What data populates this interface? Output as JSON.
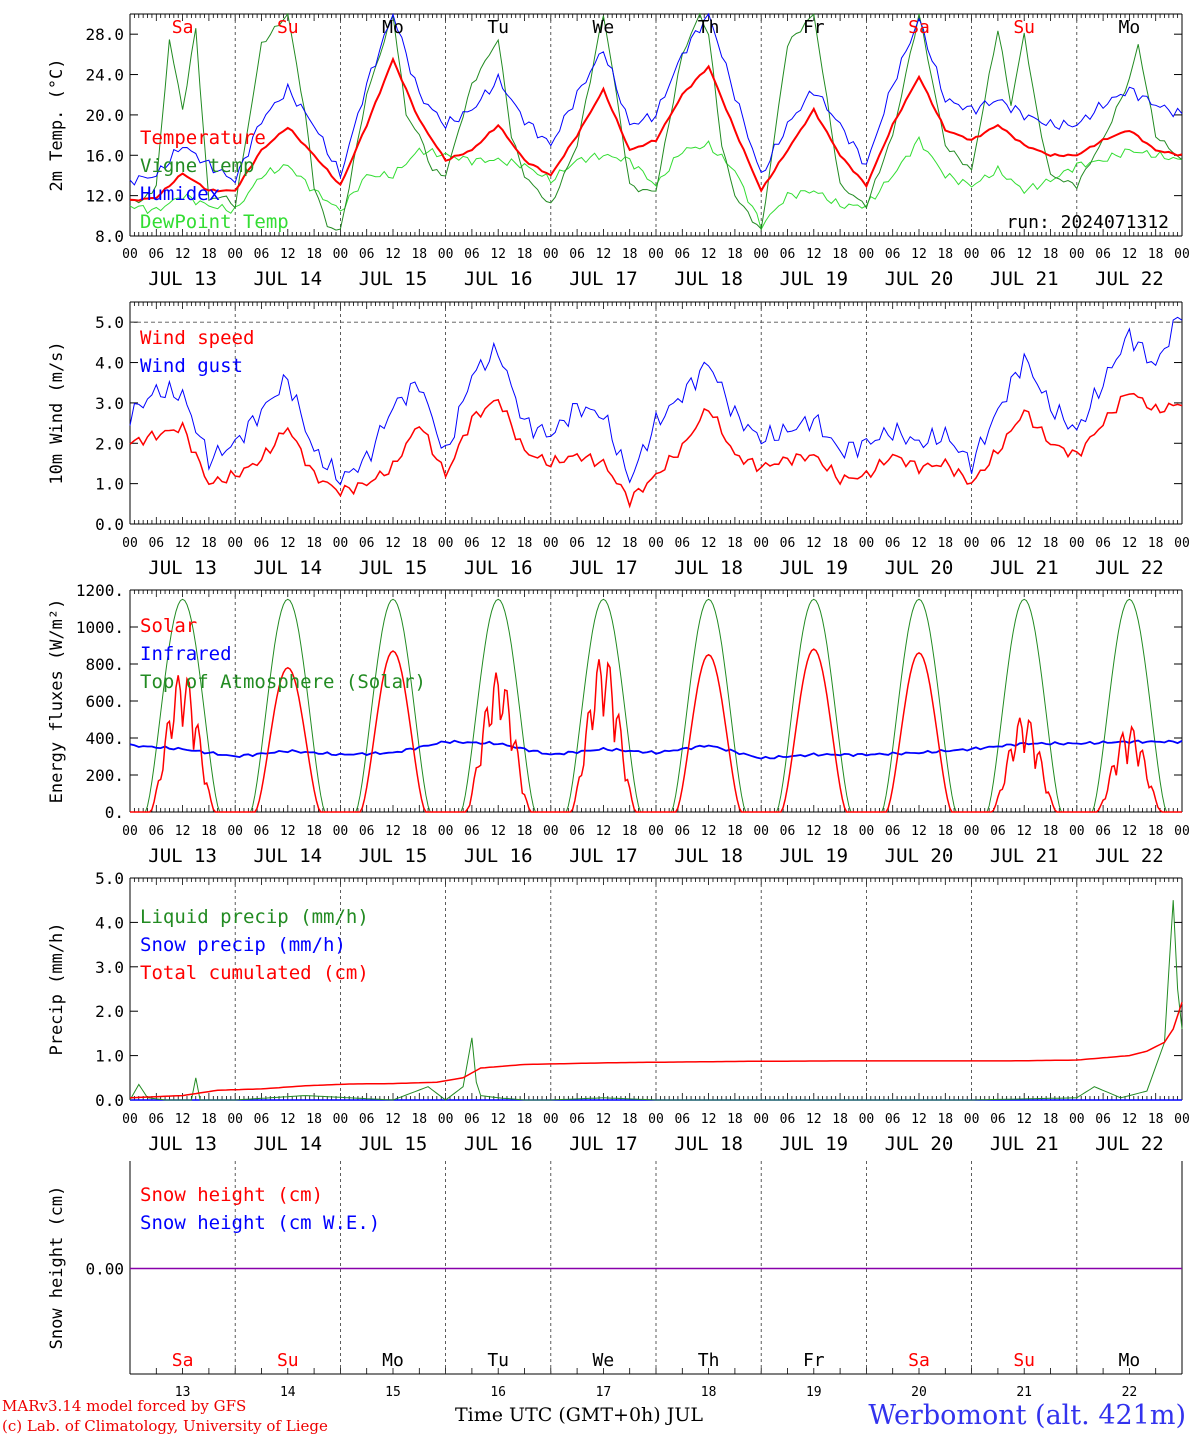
{
  "meteogram": {
    "run_label": "run: 2024071312",
    "hour_ticks": [
      "00",
      "06",
      "12",
      "18"
    ],
    "day_labels": [
      "JUL 13",
      "JUL 14",
      "JUL 15",
      "JUL 16",
      "JUL 17",
      "JUL 18",
      "JUL 19",
      "JUL 20",
      "JUL 21",
      "JUL 22"
    ],
    "weekdays": [
      {
        "label": "Sa",
        "weekend": true
      },
      {
        "label": "Su",
        "weekend": true
      },
      {
        "label": "Mo",
        "weekend": false
      },
      {
        "label": "Tu",
        "weekend": false
      },
      {
        "label": "We",
        "weekend": false
      },
      {
        "label": "Th",
        "weekend": false
      },
      {
        "label": "Fr",
        "weekend": false
      },
      {
        "label": "Sa",
        "weekend": true
      },
      {
        "label": "Su",
        "weekend": true
      },
      {
        "label": "Mo",
        "weekend": false
      }
    ],
    "day_numbers": [
      "13",
      "14",
      "15",
      "16",
      "17",
      "18",
      "19",
      "20",
      "21",
      "22"
    ],
    "x_axis_title": "Time UTC (GMT+0h) JUL",
    "credit_line1": "MARv3.14 model forced by GFS",
    "credit_line2": "(c) Lab. of Climatology, University of Liege",
    "station": "Werbomont (alt. 421m)",
    "colors": {
      "red": "#ff0000",
      "green": "#228b22",
      "blue": "#0000ff",
      "lightgreen": "#33dd33",
      "purple": "#8800aa",
      "station": "#3333ee",
      "credit": "#ee0000"
    }
  },
  "chart_data": [
    {
      "type": "line",
      "ylabel": "2m Temp. (°C)",
      "ylim": [
        8,
        30
      ],
      "yticks": [
        "8.0",
        "12.0",
        "16.0",
        "20.0",
        "24.0",
        "28.0"
      ],
      "x_unit": "hours since JUL 13 00 UTC",
      "series": [
        {
          "name": "Temperature",
          "color": "red",
          "x": [
            0,
            6,
            12,
            18,
            24,
            30,
            36,
            42,
            48,
            54,
            60,
            66,
            72,
            78,
            84,
            90,
            96,
            102,
            108,
            114,
            120,
            126,
            132,
            138,
            144,
            150,
            156,
            162,
            168,
            174,
            180,
            186,
            192,
            198,
            204,
            210,
            216,
            222,
            228,
            234,
            240
          ],
          "values": [
            11.5,
            11.8,
            14.2,
            12.5,
            12.5,
            16.5,
            18.8,
            16.0,
            13.0,
            19.0,
            25.5,
            19.5,
            15.5,
            16.5,
            19.0,
            15.5,
            14.0,
            18.0,
            22.5,
            16.5,
            17.5,
            22.0,
            24.8,
            18.5,
            12.5,
            16.5,
            20.5,
            16.0,
            13.0,
            19.0,
            23.8,
            18.5,
            17.5,
            19.0,
            17.0,
            16.0,
            16.0,
            17.5,
            18.5,
            16.5,
            16.0
          ]
        },
        {
          "name": "Vigne temp",
          "color": "green",
          "x": [
            0,
            3,
            6,
            9,
            12,
            15,
            18,
            21,
            24,
            30,
            36,
            40,
            42,
            45,
            48,
            54,
            60,
            63,
            66,
            69,
            72,
            78,
            84,
            87,
            90,
            96,
            102,
            108,
            111,
            114,
            117,
            120,
            126,
            130,
            132,
            135,
            138,
            144,
            150,
            156,
            162,
            168,
            174,
            180,
            186,
            192,
            198,
            201,
            204,
            207,
            210,
            216,
            222,
            228,
            230,
            234,
            240
          ],
          "values": [
            11.5,
            11.5,
            13.0,
            27.5,
            20.5,
            28.5,
            11.5,
            12.0,
            11.0,
            27.0,
            30.0,
            20.0,
            13.0,
            9.0,
            8.5,
            22.0,
            30.0,
            20.0,
            18.0,
            14.5,
            14.0,
            23.0,
            27.5,
            18.0,
            14.0,
            11.0,
            17.0,
            30.0,
            22.0,
            13.0,
            12.5,
            12.5,
            26.0,
            30.0,
            28.0,
            17.0,
            12.0,
            8.5,
            27.0,
            30.0,
            13.0,
            11.0,
            18.0,
            30.0,
            17.0,
            14.5,
            28.5,
            21.0,
            28.0,
            20.0,
            14.0,
            13.0,
            17.5,
            23.5,
            27.0,
            18.0,
            15.5
          ]
        },
        {
          "name": "Humidex",
          "color": "blue",
          "x": [
            0,
            6,
            12,
            18,
            24,
            30,
            36,
            42,
            48,
            54,
            60,
            66,
            72,
            78,
            84,
            90,
            96,
            102,
            108,
            114,
            120,
            126,
            132,
            138,
            144,
            150,
            156,
            162,
            168,
            174,
            180,
            186,
            192,
            198,
            204,
            210,
            216,
            222,
            228,
            234,
            240
          ],
          "values": [
            13.5,
            14.0,
            17.0,
            15.0,
            13.5,
            19.5,
            22.5,
            19.0,
            14.0,
            23.0,
            30.0,
            22.0,
            19.0,
            20.5,
            23.5,
            19.5,
            17.0,
            22.0,
            26.5,
            19.0,
            20.0,
            26.0,
            30.0,
            22.0,
            14.0,
            19.0,
            22.5,
            19.0,
            15.0,
            23.0,
            29.5,
            21.5,
            20.5,
            21.5,
            20.0,
            19.0,
            19.0,
            21.0,
            22.5,
            21.0,
            20.0
          ]
        },
        {
          "name": "DewPoint Temp",
          "color": "lightgreen",
          "x": [
            0,
            6,
            12,
            18,
            24,
            30,
            36,
            42,
            48,
            54,
            60,
            66,
            72,
            78,
            84,
            90,
            96,
            102,
            108,
            114,
            120,
            126,
            132,
            138,
            144,
            150,
            156,
            162,
            168,
            174,
            180,
            186,
            192,
            198,
            204,
            210,
            216,
            222,
            228,
            234,
            240
          ],
          "values": [
            11.0,
            10.5,
            12.0,
            11.0,
            10.5,
            14.0,
            15.0,
            12.5,
            10.5,
            14.0,
            14.0,
            16.5,
            16.0,
            15.5,
            15.5,
            15.0,
            13.5,
            15.5,
            16.0,
            15.5,
            13.0,
            16.5,
            17.0,
            14.5,
            9.0,
            12.0,
            12.5,
            11.0,
            11.0,
            14.0,
            17.5,
            14.0,
            13.0,
            14.5,
            12.5,
            13.5,
            15.0,
            15.5,
            16.5,
            16.0,
            15.5
          ]
        }
      ]
    },
    {
      "type": "line",
      "ylabel": "10m Wind (m/s)",
      "ylim": [
        0,
        5.5
      ],
      "yticks": [
        "0.0",
        "1.0",
        "2.0",
        "3.0",
        "4.0",
        "5.0"
      ],
      "reference_line": 5.0,
      "x_unit": "hours since JUL 13 00 UTC",
      "series": [
        {
          "name": "Wind speed",
          "color": "red",
          "x": [
            0,
            6,
            12,
            18,
            24,
            30,
            36,
            42,
            48,
            54,
            60,
            66,
            72,
            78,
            84,
            90,
            96,
            102,
            108,
            114,
            120,
            126,
            132,
            138,
            144,
            150,
            156,
            162,
            168,
            174,
            180,
            186,
            192,
            198,
            204,
            210,
            216,
            222,
            228,
            234,
            240
          ],
          "values": [
            2.0,
            2.2,
            2.4,
            1.0,
            1.2,
            1.6,
            2.4,
            1.2,
            0.8,
            1.0,
            1.4,
            2.5,
            1.2,
            2.6,
            3.1,
            1.8,
            1.5,
            1.7,
            1.5,
            0.6,
            1.2,
            1.9,
            2.9,
            1.7,
            1.4,
            1.6,
            1.7,
            1.1,
            1.2,
            1.7,
            1.4,
            1.5,
            1.0,
            1.8,
            2.8,
            2.0,
            1.7,
            2.5,
            3.3,
            2.8,
            3.0
          ]
        },
        {
          "name": "Wind gust",
          "color": "blue",
          "x": [
            0,
            6,
            12,
            18,
            24,
            30,
            36,
            42,
            48,
            54,
            60,
            66,
            72,
            78,
            84,
            90,
            96,
            102,
            108,
            114,
            120,
            126,
            132,
            138,
            144,
            150,
            156,
            162,
            168,
            174,
            180,
            186,
            192,
            198,
            204,
            210,
            216,
            222,
            228,
            234,
            240
          ],
          "values": [
            2.7,
            3.3,
            3.2,
            1.6,
            2.0,
            2.8,
            3.6,
            1.8,
            1.1,
            1.6,
            2.9,
            3.5,
            1.7,
            3.7,
            4.3,
            2.5,
            2.2,
            2.9,
            2.7,
            1.1,
            2.5,
            3.2,
            4.0,
            2.7,
            2.1,
            2.3,
            2.6,
            1.8,
            2.0,
            2.3,
            2.0,
            2.2,
            1.5,
            2.8,
            4.1,
            2.9,
            2.3,
            3.5,
            4.7,
            3.9,
            5.3
          ]
        }
      ]
    },
    {
      "type": "line",
      "ylabel": "Energy fluxes (W/m²)",
      "ylim": [
        0,
        1200
      ],
      "yticks": [
        "0.",
        "200.",
        "400.",
        "600.",
        "800.",
        "1000.",
        "1200."
      ],
      "x_unit": "hours since JUL 13 00 UTC",
      "solar_day_peaks": [
        770,
        780,
        870,
        760,
        860,
        850,
        880,
        860,
        530,
        470
      ],
      "top_of_atmosphere_peak": 1150,
      "series": [
        {
          "name": "Solar",
          "color": "red"
        },
        {
          "name": "Infrared",
          "color": "blue",
          "x": [
            0,
            12,
            24,
            36,
            48,
            60,
            72,
            84,
            96,
            108,
            120,
            132,
            144,
            156,
            168,
            180,
            192,
            204,
            216,
            228,
            240
          ],
          "values": [
            360,
            340,
            300,
            330,
            310,
            320,
            380,
            370,
            310,
            340,
            320,
            360,
            290,
            310,
            310,
            320,
            340,
            370,
            370,
            380,
            380
          ]
        },
        {
          "name": "Top of Atmosphere (Solar)",
          "color": "green"
        }
      ]
    },
    {
      "type": "line",
      "ylabel": "Precip (mm/h)",
      "ylim": [
        0,
        5.0
      ],
      "yticks": [
        "0.0",
        "1.0",
        "2.0",
        "3.0",
        "4.0",
        "5.0"
      ],
      "x_unit": "hours since JUL 13 00 UTC",
      "series": [
        {
          "name": "Liquid precip (mm/h)",
          "color": "green",
          "x": [
            0,
            2,
            4,
            8,
            14,
            15,
            16,
            24,
            40,
            60,
            68,
            72,
            76,
            78,
            79,
            80,
            84,
            90,
            96,
            108,
            120,
            144,
            168,
            192,
            216,
            220,
            226,
            232,
            236,
            238,
            239,
            240
          ],
          "values": [
            0,
            0.35,
            0.05,
            0,
            0,
            0.5,
            0,
            0,
            0.1,
            0,
            0.3,
            0,
            0.3,
            1.4,
            0.4,
            0.1,
            0.05,
            0,
            0,
            0.05,
            0,
            0,
            0,
            0,
            0.05,
            0.3,
            0.05,
            0.2,
            1.3,
            4.5,
            2.5,
            1.6
          ]
        },
        {
          "name": "Snow precip (mm/h)",
          "color": "blue",
          "x": [
            0,
            240
          ],
          "values": [
            0,
            0
          ]
        },
        {
          "name": "Total cumulated (cm)",
          "color": "red",
          "x": [
            0,
            12,
            20,
            30,
            40,
            50,
            60,
            70,
            76,
            80,
            90,
            100,
            110,
            120,
            140,
            160,
            180,
            200,
            216,
            228,
            232,
            236,
            238,
            240
          ],
          "values": [
            0.05,
            0.1,
            0.22,
            0.25,
            0.32,
            0.36,
            0.37,
            0.4,
            0.5,
            0.72,
            0.8,
            0.82,
            0.84,
            0.85,
            0.87,
            0.88,
            0.88,
            0.88,
            0.9,
            1.0,
            1.1,
            1.3,
            1.6,
            2.2
          ]
        }
      ]
    },
    {
      "type": "line",
      "ylabel": "Snow height (cm)",
      "yticks": [
        "0.00"
      ],
      "x_unit": "hours since JUL 13 00 UTC",
      "series": [
        {
          "name": "Snow height (cm)",
          "color": "red",
          "x": [
            0,
            240
          ],
          "values": [
            0,
            0
          ]
        },
        {
          "name": "Snow height (cm W.E.)",
          "color": "blue",
          "x": [
            0,
            240
          ],
          "values": [
            0,
            0
          ]
        }
      ]
    }
  ]
}
